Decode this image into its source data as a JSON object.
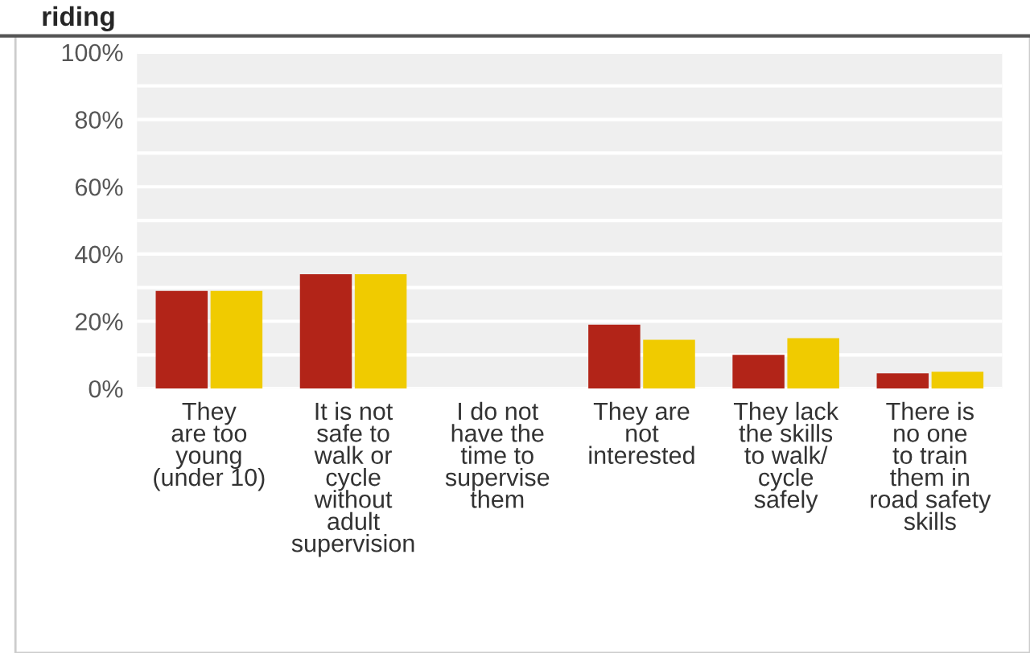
{
  "chart_data": {
    "type": "bar",
    "title": "riding",
    "categories": [
      "They\nare too\nyoung\n(under 10)",
      "It is not\nsafe to\nwalk or\ncycle\nwithout\nadult\nsupervision",
      "I do not\nhave the\ntime to\nsupervise\nthem",
      "They are\nnot\ninterested",
      "They lack\nthe skills\nto walk/\ncycle\nsafely",
      "There is\nno one\nto train\nthem in\nroad safety\nskills"
    ],
    "series": [
      {
        "color": "#b22418",
        "values": [
          29,
          34,
          0,
          19,
          10,
          4.5
        ]
      },
      {
        "color": "#f0cb00",
        "values": [
          29,
          34,
          0,
          14.5,
          15,
          5
        ]
      }
    ],
    "ylim": [
      0,
      100
    ],
    "yticks": [
      {
        "value": 0,
        "label": "0%"
      },
      {
        "value": 10,
        "label": null
      },
      {
        "value": 20,
        "label": "20%"
      },
      {
        "value": 30,
        "label": null
      },
      {
        "value": 40,
        "label": "40%"
      },
      {
        "value": 50,
        "label": null
      },
      {
        "value": 60,
        "label": "60%"
      },
      {
        "value": 70,
        "label": null
      },
      {
        "value": 80,
        "label": "80%"
      },
      {
        "value": 90,
        "label": null
      },
      {
        "value": 100,
        "label": "100%"
      }
    ],
    "grid": "y",
    "legend": false
  }
}
